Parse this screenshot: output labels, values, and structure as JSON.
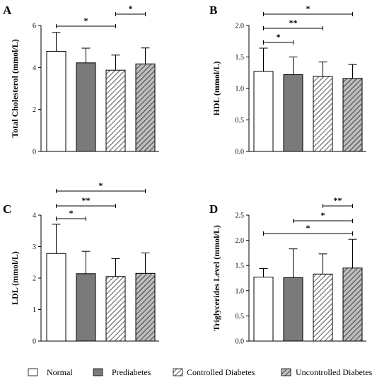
{
  "chart_data": [
    {
      "panel": "A",
      "type": "bar",
      "ylabel": "Total Cholesterol (mmol/L)",
      "ylim": [
        0,
        6
      ],
      "yticks": [
        "0",
        "2",
        "4",
        "6"
      ],
      "categories": [
        "Normal",
        "Prediabetes",
        "Controlled Diabetes",
        "Uncontrolled Diabetes"
      ],
      "values": [
        4.77,
        4.22,
        3.87,
        4.17
      ],
      "errors": [
        0.9,
        0.7,
        0.72,
        0.76
      ],
      "significance": [
        {
          "from": 0,
          "to": 2,
          "label": "*"
        },
        {
          "from": 2,
          "to": 3,
          "label": "*"
        }
      ]
    },
    {
      "panel": "B",
      "type": "bar",
      "ylabel": "HDL (mmol/L)",
      "ylim": [
        0,
        2
      ],
      "yticks": [
        "0.0",
        "0.5",
        "1.0",
        "1.5",
        "2.0"
      ],
      "categories": [
        "Normal",
        "Prediabetes",
        "Controlled Diabetes",
        "Uncontrolled Diabetes"
      ],
      "values": [
        1.27,
        1.22,
        1.19,
        1.16
      ],
      "errors": [
        0.37,
        0.28,
        0.23,
        0.22
      ],
      "significance": [
        {
          "from": 0,
          "to": 3,
          "label": "*"
        },
        {
          "from": 0,
          "to": 2,
          "label": "**"
        },
        {
          "from": 0,
          "to": 1,
          "label": "*"
        }
      ]
    },
    {
      "panel": "C",
      "type": "bar",
      "ylabel": "LDL (mmol/L)",
      "ylim": [
        0,
        4
      ],
      "yticks": [
        "0",
        "1",
        "2",
        "3",
        "4"
      ],
      "categories": [
        "Normal",
        "Prediabetes",
        "Controlled Diabetes",
        "Uncontrolled Diabetes"
      ],
      "values": [
        2.78,
        2.14,
        2.05,
        2.15
      ],
      "errors": [
        0.93,
        0.71,
        0.57,
        0.65
      ],
      "significance": [
        {
          "from": 0,
          "to": 3,
          "label": "*"
        },
        {
          "from": 0,
          "to": 2,
          "label": "**"
        },
        {
          "from": 0,
          "to": 1,
          "label": "*"
        }
      ]
    },
    {
      "panel": "D",
      "type": "bar",
      "ylabel": "Triglycerides Level (mmol/L)",
      "ylim": [
        0,
        2.5
      ],
      "yticks": [
        "0.0",
        "0.5",
        "1.0",
        "1.5",
        "2.0",
        "2.5"
      ],
      "categories": [
        "Normal",
        "Prediabetes",
        "Controlled Diabetes",
        "Uncontrolled Diabetes"
      ],
      "values": [
        1.27,
        1.26,
        1.33,
        1.45
      ],
      "errors": [
        0.17,
        0.57,
        0.4,
        0.57
      ],
      "significance": [
        {
          "from": 2,
          "to": 3,
          "label": "**"
        },
        {
          "from": 1,
          "to": 3,
          "label": "*"
        },
        {
          "from": 0,
          "to": 3,
          "label": "*"
        }
      ]
    }
  ],
  "legend": {
    "position": "bottom",
    "items": [
      {
        "label": "Normal",
        "fill": "#ffffff",
        "pattern": "none"
      },
      {
        "label": "Prediabetes",
        "fill": "#7a7a7a",
        "pattern": "none"
      },
      {
        "label": "Controlled Diabetes",
        "fill": "#ffffff",
        "pattern": "hatch"
      },
      {
        "label": "Uncontrolled Diabetes",
        "fill": "#bdbdbd",
        "pattern": "hatch"
      }
    ]
  },
  "colors": {
    "axis": "#000000",
    "prediabetes": "#7a7a7a",
    "uncontrolled_bg": "#bdbdbd"
  }
}
